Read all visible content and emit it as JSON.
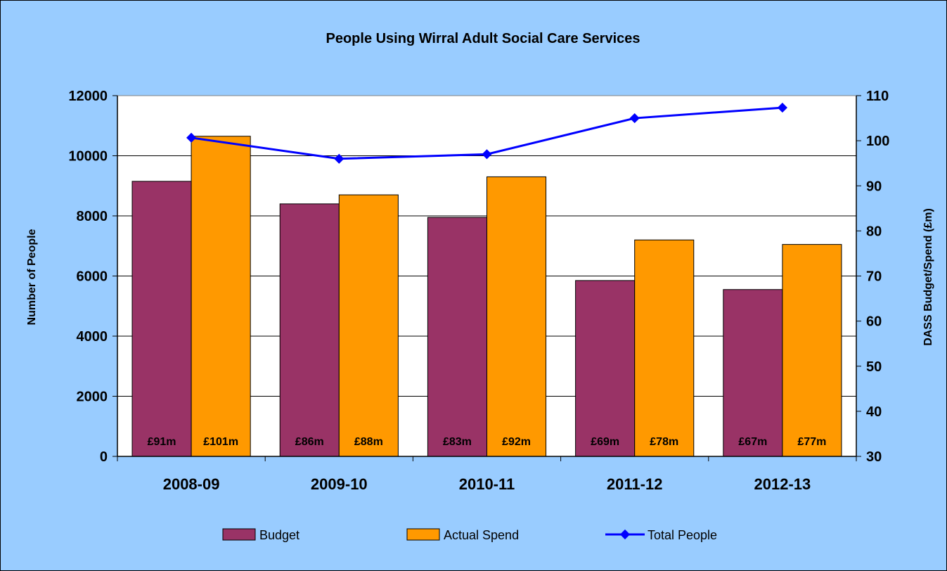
{
  "chart_data": {
    "type": "bar",
    "title": "People Using Wirral Adult Social Care Services",
    "categories": [
      "2008-09",
      "2009-10",
      "2010-11",
      "2011-12",
      "2012-13"
    ],
    "ylabel_left": "Number of People",
    "ylabel_right": "DASS Budget/Spend (£m)",
    "y_left": {
      "min": 0,
      "max": 12000,
      "step": 2000
    },
    "y_right": {
      "min": 30,
      "max": 110,
      "step": 10
    },
    "grid": true,
    "legend_position": "bottom",
    "series": [
      {
        "name": "Budget",
        "kind": "bar",
        "axis": "right",
        "color": "#993366",
        "values": [
          91,
          86,
          83,
          69,
          67
        ],
        "labels": [
          "£91m",
          "£86m",
          "£83m",
          "£69m",
          "£67m"
        ]
      },
      {
        "name": "Actual Spend",
        "kind": "bar",
        "axis": "right",
        "color": "#ff9900",
        "values": [
          101,
          88,
          92,
          78,
          77
        ],
        "labels": [
          "£101m",
          "£88m",
          "£92m",
          "£78m",
          "£77m"
        ]
      },
      {
        "name": "Total People",
        "kind": "line",
        "axis": "left",
        "color": "#0000ff",
        "values": [
          10600,
          9900,
          10050,
          11250,
          11600
        ]
      }
    ]
  }
}
